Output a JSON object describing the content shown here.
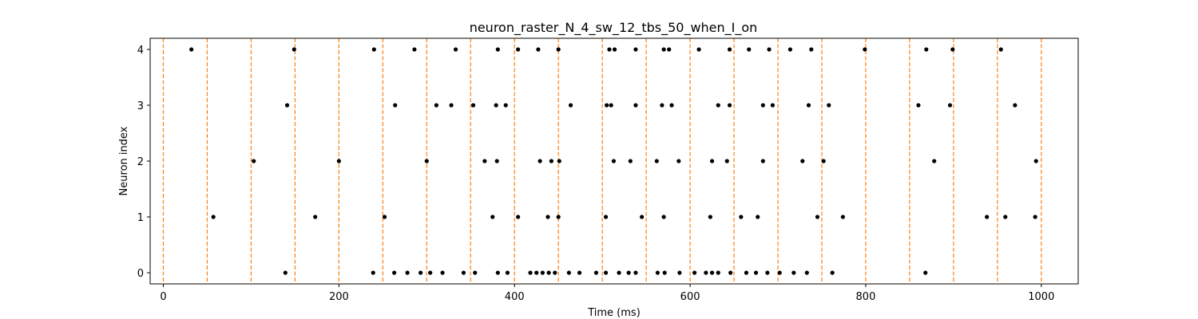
{
  "chart_data": {
    "type": "scatter",
    "title": "neuron_raster_N_4_sw_12_tbs_50_when_I_on",
    "xlabel": "Time (ms)",
    "ylabel": "Neuron index",
    "xlim": [
      -15,
      1042
    ],
    "ylim": [
      -0.2,
      4.2
    ],
    "xticks": [
      0,
      200,
      400,
      600,
      800,
      1000
    ],
    "yticks": [
      0,
      1,
      2,
      3,
      4
    ],
    "grid": false,
    "spike_color": "#000000",
    "vline_color": "#ff7f0e",
    "vlines": [
      0,
      50,
      100,
      150,
      200,
      250,
      300,
      350,
      400,
      450,
      500,
      550,
      600,
      650,
      700,
      750,
      800,
      850,
      900,
      950,
      1000
    ],
    "series": [
      {
        "neuron": 0,
        "x": [
          139,
          239,
          263,
          278,
          293,
          304,
          318,
          342,
          355,
          381,
          392,
          418,
          425,
          432,
          439,
          446,
          462,
          474,
          493,
          504,
          519,
          530,
          538,
          563,
          571,
          588,
          605,
          618,
          625,
          632,
          646,
          664,
          675,
          688,
          702,
          718,
          733,
          762,
          868
        ]
      },
      {
        "neuron": 1,
        "x": [
          57,
          173,
          252,
          375,
          404,
          438,
          450,
          504,
          545,
          570,
          623,
          658,
          677,
          745,
          774,
          938,
          959,
          993
        ]
      },
      {
        "neuron": 2,
        "x": [
          103,
          200,
          300,
          366,
          380,
          429,
          442,
          451,
          513,
          532,
          562,
          587,
          625,
          642,
          683,
          728,
          752,
          878,
          994
        ]
      },
      {
        "neuron": 3,
        "x": [
          141,
          264,
          311,
          328,
          353,
          379,
          390,
          464,
          505,
          510,
          538,
          568,
          579,
          632,
          645,
          683,
          694,
          735,
          758,
          860,
          896,
          970
        ]
      },
      {
        "neuron": 4,
        "x": [
          32,
          149,
          240,
          286,
          333,
          381,
          404,
          427,
          450,
          508,
          514,
          538,
          570,
          576,
          610,
          645,
          667,
          690,
          714,
          738,
          799,
          869,
          899,
          954
        ]
      }
    ]
  }
}
